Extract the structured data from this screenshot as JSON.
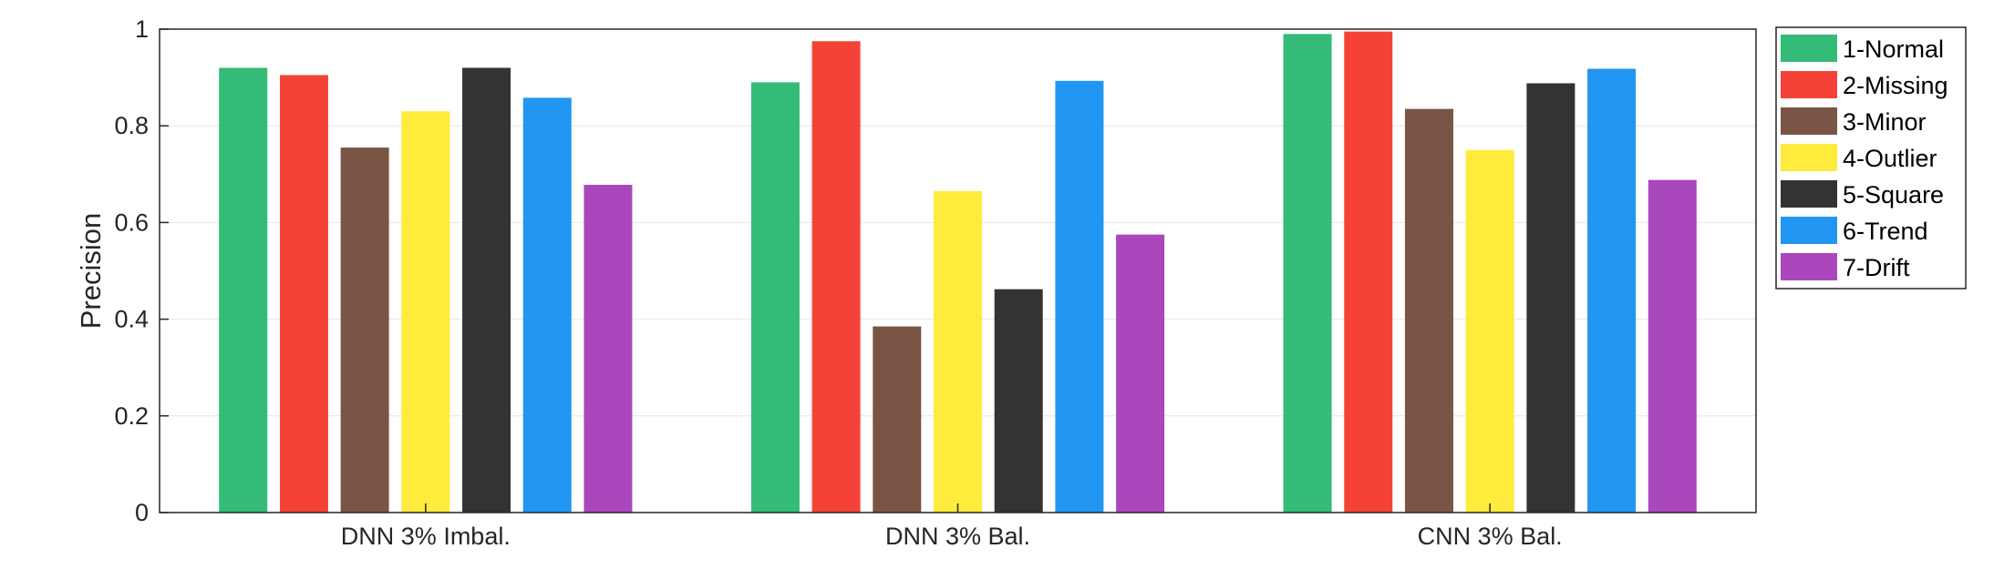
{
  "chart_data": {
    "type": "bar",
    "categories": [
      "DNN 3% Imbal.",
      "DNN 3% Bal.",
      "CNN 3% Bal."
    ],
    "series": [
      {
        "name": "1-Normal",
        "color": "#33bb77",
        "values": [
          0.92,
          0.89,
          0.99
        ]
      },
      {
        "name": "2-Missing",
        "color": "#f44336",
        "values": [
          0.905,
          0.975,
          0.995
        ]
      },
      {
        "name": "3-Minor",
        "color": "#7a5546",
        "values": [
          0.755,
          0.385,
          0.835
        ]
      },
      {
        "name": "4-Outlier",
        "color": "#ffeb3b",
        "values": [
          0.83,
          0.665,
          0.75
        ]
      },
      {
        "name": "5-Square",
        "color": "#333333",
        "values": [
          0.92,
          0.462,
          0.888
        ]
      },
      {
        "name": "6-Trend",
        "color": "#2196f3",
        "values": [
          0.858,
          0.893,
          0.918
        ]
      },
      {
        "name": "7-Drift",
        "color": "#ab47bc",
        "values": [
          0.678,
          0.575,
          0.688
        ]
      }
    ],
    "xlabel": "",
    "ylabel": "Precision",
    "ylim": [
      0,
      1
    ],
    "yticks": [
      0,
      0.2,
      0.4,
      0.6,
      0.8,
      1
    ],
    "ytick_labels": [
      "0",
      "0.2",
      "0.4",
      "0.6",
      "0.8",
      "1"
    ],
    "grid": "horizontal",
    "legend_position": "outside-top-right"
  }
}
